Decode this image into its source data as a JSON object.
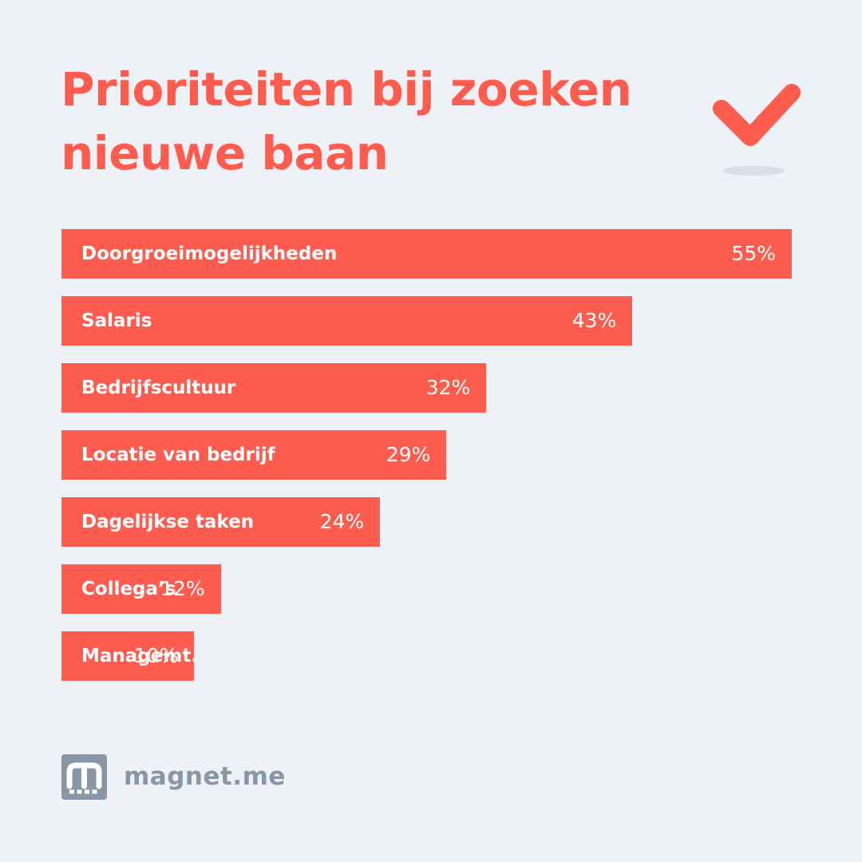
{
  "title": "Prioriteiten bij zoeken nieuwe baan",
  "icons": {
    "checkmark": "checkmark-icon",
    "logo": "magnet-logo-icon"
  },
  "colors": {
    "background": "#eef1f5",
    "accent": "#fd5c4f",
    "brand_grey": "#8896a6"
  },
  "brand": {
    "name": "magnet.me"
  },
  "chart_data": {
    "type": "bar",
    "orientation": "horizontal",
    "title": "Prioriteiten bij zoeken nieuwe baan",
    "categories": [
      "Doorgroeimogelijkheden",
      "Salaris",
      "Bedrijfscultuur",
      "Locatie van bedrijf",
      "Dagelijkse taken",
      "Collega’s",
      "Managemt."
    ],
    "values": [
      55,
      43,
      32,
      29,
      24,
      12,
      10
    ],
    "value_labels": [
      "55%",
      "43%",
      "32%",
      "29%",
      "24%",
      "12%",
      "10%"
    ],
    "unit": "%",
    "xlim": [
      0,
      55
    ],
    "grid": false,
    "legend": "none"
  }
}
